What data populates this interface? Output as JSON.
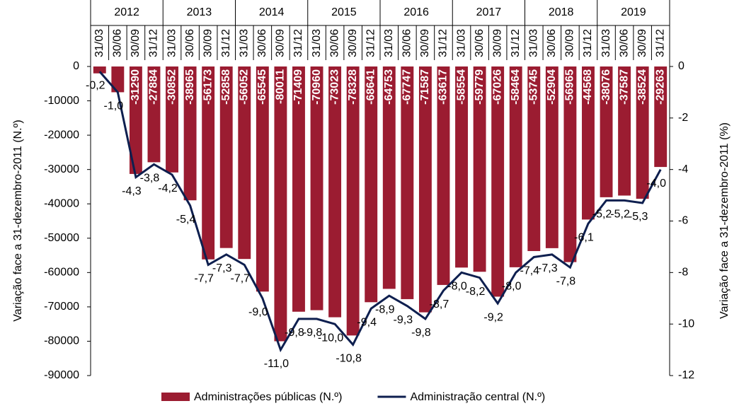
{
  "chart_data": {
    "type": "bar-line",
    "years": [
      "2012",
      "2013",
      "2014",
      "2015",
      "2016",
      "2017",
      "2018",
      "2019"
    ],
    "categories": [
      "31/03",
      "30/06",
      "30/09",
      "31/12",
      "31/03",
      "30/06",
      "30/09",
      "31/12",
      "31/03",
      "30/06",
      "30/09",
      "31/12",
      "31/03",
      "30/06",
      "30/09",
      "31/12",
      "31/03",
      "30/06",
      "30/09",
      "31/12",
      "31/03",
      "30/06",
      "30/09",
      "31/12",
      "31/03",
      "30/06",
      "30/09",
      "31/12",
      "31/03",
      "30/06",
      "30/09",
      "31/12"
    ],
    "y_label": "Variação  face a 31-dezembro-2011 (N.º)",
    "y2_label": "Variação face a 31-dezembro-2011 (%)",
    "ylim": [
      0,
      -90000
    ],
    "yticks": [
      0,
      -10000,
      -20000,
      -30000,
      -40000,
      -50000,
      -60000,
      -70000,
      -80000,
      -90000
    ],
    "y2lim": [
      0,
      -12
    ],
    "y2ticks": [
      0,
      -2,
      -4,
      -6,
      -8,
      -10,
      -12
    ],
    "series": [
      {
        "name": "Administrações públicas (N.º)",
        "color": "#9b1c31",
        "kind": "bar",
        "values": [
          -2000,
          -7500,
          -31290,
          -27884,
          -30852,
          -38965,
          -56173,
          -52858,
          -56052,
          -65545,
          -80011,
          -71409,
          -70960,
          -73023,
          -78328,
          -68641,
          -64753,
          -67747,
          -71587,
          -63617,
          -58554,
          -59779,
          -67026,
          -58464,
          -53745,
          -52904,
          -56965,
          -44568,
          -38076,
          -37587,
          -38524,
          -29263
        ],
        "value_labels": [
          null,
          null,
          "-31290",
          "-27884",
          "-30852",
          "-38965",
          "-56173",
          "-52858",
          "-56052",
          "-65545",
          "-80011",
          "-71409",
          "-70960",
          "-73023",
          "-78328",
          "-68641",
          "-64753",
          "-67747",
          "-71587",
          "-63617",
          "-58554",
          "-59779",
          "-67026",
          "-58464",
          "-53745",
          "-52904",
          "-56965",
          "-44568",
          "-38076",
          "-37587",
          "-38524",
          "-29263"
        ]
      },
      {
        "name": "Administração central (N.º)",
        "color": "#0e1f4f",
        "kind": "line",
        "axis": "y2",
        "values": [
          -0.2,
          -1.0,
          -4.3,
          -3.8,
          -4.2,
          -5.4,
          -7.7,
          -7.3,
          -7.7,
          -9.0,
          -11.0,
          -9.8,
          -9.8,
          -10.0,
          -10.8,
          -9.4,
          -8.9,
          -9.3,
          -9.8,
          -8.7,
          -8.0,
          -8.2,
          -9.2,
          -8.0,
          -7.4,
          -7.3,
          -7.8,
          -6.1,
          -5.2,
          -5.2,
          -5.3,
          -4.0
        ],
        "value_labels": [
          "-0,2",
          "-1,0",
          "-4,3",
          "-3,8",
          "-4,2",
          "-5,4",
          "-7,7",
          "-7,3",
          "-7,7",
          "-9,0",
          "-11,0",
          "-9,8",
          "-9,8",
          "-10,0",
          "-10,8",
          "-9,4",
          "-8,9",
          "-9,3",
          "-9,8",
          "-8,7",
          "-8,0",
          "-8,2",
          "-9,2",
          "-8,0",
          "-7,4",
          "-7,3",
          "-7,8",
          "-6,1",
          "-5,2",
          "-5,2",
          "-5,3",
          "-4,0"
        ]
      }
    ]
  }
}
